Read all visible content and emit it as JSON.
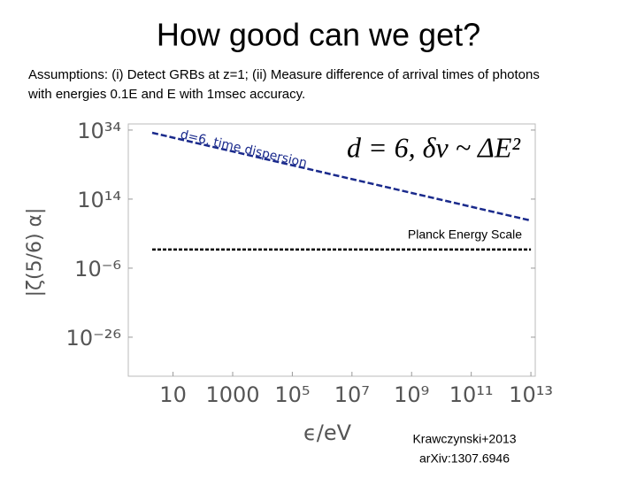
{
  "chart_data": {
    "type": "line",
    "title": "How good can we get?",
    "subtitle": "Assumptions: (i) Detect GRBs at z=1; (ii) Measure difference of arrival times of photons with energies 0.1E and E with 1msec accuracy.",
    "x_label": "ϵ/eV",
    "y_label": "|ζ(5/6) α|",
    "xscale": "log",
    "yscale": "log",
    "xlim": [
      0.316,
      14000000000000
    ],
    "ylim": [
      6e+35,
      5e-38
    ],
    "xticks": [
      10,
      1000,
      {
        "value": 100000,
        "label": "10⁵"
      },
      {
        "value": 10000000,
        "label": "10⁷"
      },
      {
        "value": 1000000000,
        "label": "10⁹"
      },
      {
        "value": 100000000000,
        "label": "10¹¹"
      },
      {
        "value": 10000000000000,
        "label": "10¹³"
      }
    ],
    "yticks": [
      {
        "value": 1e+34,
        "label": "10³⁴"
      },
      {
        "value": 100000000000000.0,
        "label": "10¹⁴"
      },
      {
        "value": 1e-06,
        "label": "10⁻⁶"
      },
      {
        "value": 1e-26,
        "label": "10⁻²⁶"
      }
    ],
    "series": [
      {
        "name": "d=6, time dispersion",
        "color": "#1a2a8c",
        "x": [
          2,
          10000000000000
        ],
        "values": [
          1.6e+33,
          60000000.0
        ]
      },
      {
        "name": "Planck Energy Scale",
        "color": "#000000",
        "x": [
          2,
          10000000000000
        ],
        "values": [
          0.25,
          0.25
        ]
      }
    ],
    "formula": "d = 6, δv ~ ΔE²",
    "credits": [
      "Krawczynski+2013",
      "arXiv:1307.6946"
    ]
  }
}
